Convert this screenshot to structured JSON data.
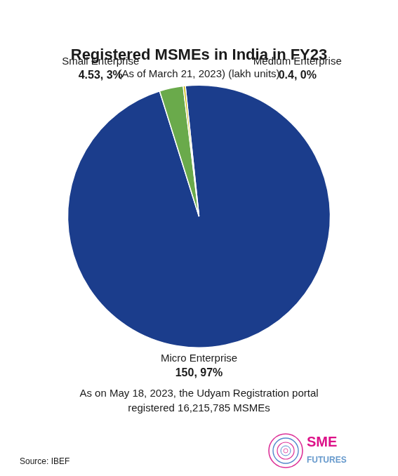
{
  "chart_data": {
    "type": "pie",
    "title": "Registered MSMEs in India in FY23",
    "subtitle": "(As of March 21, 2023) (lakh units)",
    "categories": [
      "Micro Enterprise",
      "Small Enterprise",
      "Medium Enterprise"
    ],
    "values": [
      150,
      4.53,
      0.4
    ],
    "value_labels": [
      "150, 97%",
      "4.53, 3%",
      "0.4, 0%"
    ],
    "data_labels": true,
    "colors": [
      "#1b3d8c",
      "#6aaa4b",
      "#c8b400"
    ],
    "annotations": [
      "As on May 18, 2023, the Udyam Registration portal\nregistered 16,215,785 MSMEs",
      "Source: IBEF",
      "SME",
      "FUTURES"
    ]
  }
}
